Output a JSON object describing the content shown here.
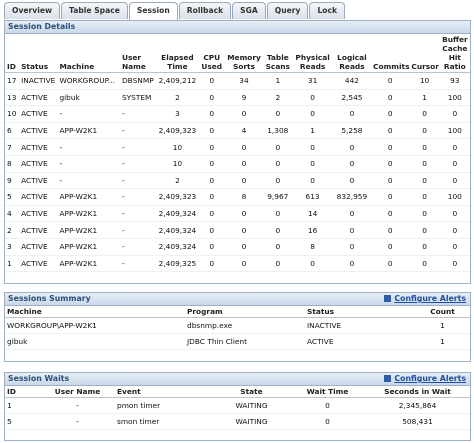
{
  "tabs": [
    "Overview",
    "Table Space",
    "Session",
    "Rollback",
    "SGA",
    "Query",
    "Lock"
  ],
  "session_details": {
    "title": "Session Details",
    "columns": [
      "ID",
      "Status",
      "Machine",
      "User Name",
      "Elapsed Time",
      "CPU Used",
      "Memory Sorts",
      "Table Scans",
      "Physical Reads",
      "Logical Reads",
      "Commits",
      "Cursor",
      "Buffer Cache Hit Ratio"
    ],
    "rows": [
      [
        "17",
        "INACTIVE",
        "WORKGROUP...",
        "DBSNMP",
        "2,409,212",
        "0",
        "34",
        "1",
        "31",
        "442",
        "0",
        "10",
        "93"
      ],
      [
        "13",
        "ACTIVE",
        "gibuk",
        "SYSTEM",
        "2",
        "0",
        "9",
        "2",
        "0",
        "2,545",
        "0",
        "1",
        "100"
      ],
      [
        "10",
        "ACTIVE",
        "-",
        "-",
        "3",
        "0",
        "0",
        "0",
        "0",
        "0",
        "0",
        "0",
        "0"
      ],
      [
        "6",
        "ACTIVE",
        "APP-W2K1",
        "-",
        "2,409,323",
        "0",
        "4",
        "1,308",
        "1",
        "5,258",
        "0",
        "0",
        "100"
      ],
      [
        "7",
        "ACTIVE",
        "-",
        "-",
        "10",
        "0",
        "0",
        "0",
        "0",
        "0",
        "0",
        "0",
        "0"
      ],
      [
        "8",
        "ACTIVE",
        "-",
        "-",
        "10",
        "0",
        "0",
        "0",
        "0",
        "0",
        "0",
        "0",
        "0"
      ],
      [
        "9",
        "ACTIVE",
        "-",
        "-",
        "2",
        "0",
        "0",
        "0",
        "0",
        "0",
        "0",
        "0",
        "0"
      ],
      [
        "5",
        "ACTIVE",
        "APP-W2K1",
        "-",
        "2,409,323",
        "0",
        "8",
        "9,967",
        "613",
        "832,959",
        "0",
        "0",
        "100"
      ],
      [
        "4",
        "ACTIVE",
        "APP-W2K1",
        "-",
        "2,409,324",
        "0",
        "0",
        "0",
        "14",
        "0",
        "0",
        "0",
        "0"
      ],
      [
        "2",
        "ACTIVE",
        "APP-W2K1",
        "-",
        "2,409,324",
        "0",
        "0",
        "0",
        "16",
        "0",
        "0",
        "0",
        "0"
      ],
      [
        "3",
        "ACTIVE",
        "APP-W2K1",
        "-",
        "2,409,324",
        "0",
        "0",
        "0",
        "8",
        "0",
        "0",
        "0",
        "0"
      ],
      [
        "1",
        "ACTIVE",
        "APP-W2K1",
        "-",
        "2,409,325",
        "0",
        "0",
        "0",
        "0",
        "0",
        "0",
        "0",
        "0"
      ]
    ]
  },
  "sessions_summary": {
    "title": "Sessions Summary",
    "link": "Configure Alerts",
    "columns": [
      "Machine",
      "Program",
      "Status",
      "Count"
    ],
    "rows": [
      [
        "WORKGROUP\\APP-W2K1",
        "dbsnmp.exe",
        "INACTIVE",
        "1"
      ],
      [
        "gibuk",
        "JDBC Thin Client",
        "ACTIVE",
        "1"
      ]
    ]
  },
  "session_waits": {
    "title": "Session Waits",
    "link": "Configure Alerts",
    "columns": [
      "ID",
      "User Name",
      "Event",
      "State",
      "Wait Time",
      "Seconds in Wait"
    ],
    "rows": [
      [
        "1",
        "-",
        "pmon timer",
        "WAITING",
        "0",
        "2,345,864"
      ],
      [
        "5",
        "-",
        "smon timer",
        "WAITING",
        "0",
        "508,431"
      ]
    ]
  }
}
